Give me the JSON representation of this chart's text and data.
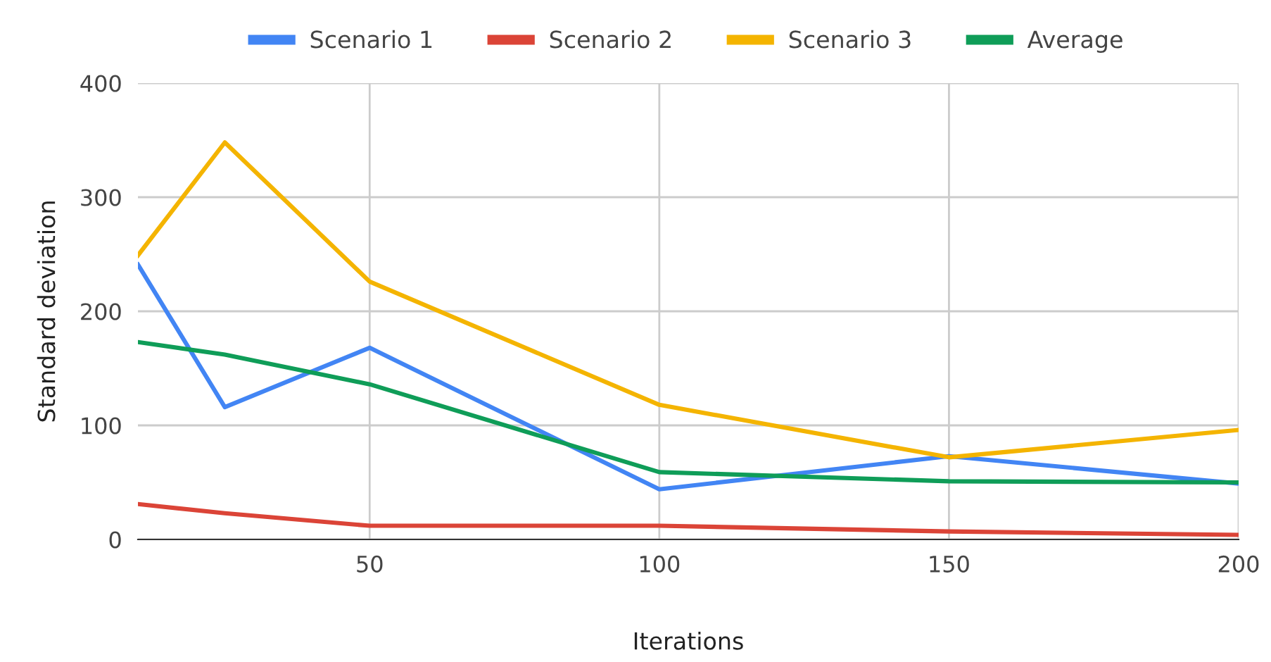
{
  "chart_data": {
    "type": "line",
    "xlabel": "Iterations",
    "ylabel": "Standard deviation",
    "x": [
      10,
      25,
      50,
      100,
      150,
      200
    ],
    "series": [
      {
        "name": "Scenario 1",
        "color": "#4285f4",
        "values": [
          241,
          116,
          168,
          44,
          73,
          49
        ]
      },
      {
        "name": "Scenario 2",
        "color": "#db4437",
        "values": [
          31,
          23,
          12,
          12,
          7,
          4
        ]
      },
      {
        "name": "Scenario 3",
        "color": "#f4b400",
        "values": [
          249,
          348,
          226,
          118,
          72,
          96
        ]
      },
      {
        "name": "Average",
        "color": "#0f9d58",
        "values": [
          173,
          162,
          136,
          59,
          51,
          50
        ]
      }
    ],
    "xlim": [
      10,
      200
    ],
    "xticks": [
      50,
      100,
      150,
      200
    ],
    "ylim": [
      0,
      400
    ],
    "yticks": [
      0,
      100,
      200,
      300,
      400
    ],
    "grid": true,
    "legend": "top",
    "marker": "none",
    "line_style": "solid"
  }
}
